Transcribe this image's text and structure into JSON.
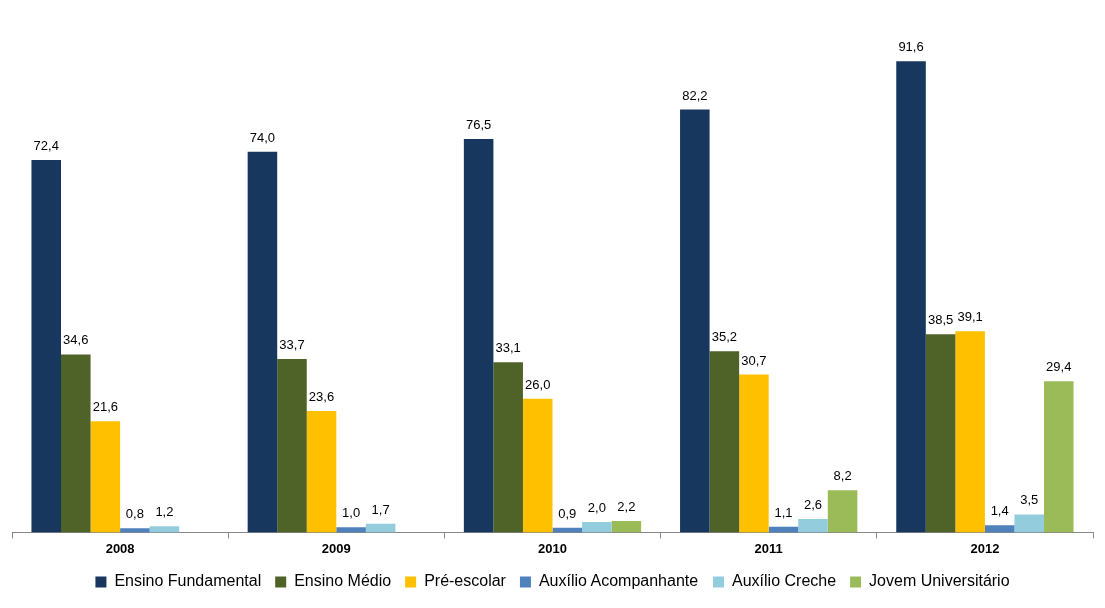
{
  "chart_data": {
    "type": "bar",
    "categories": [
      "2008",
      "2009",
      "2010",
      "2011",
      "2012"
    ],
    "series": [
      {
        "name": "Ensino Fundamental",
        "color": "#17375e",
        "values": [
          72.4,
          74.0,
          76.5,
          82.2,
          91.6
        ],
        "value_labels": [
          "72,4",
          "74,0",
          "76,5",
          "82,2",
          "91,6"
        ]
      },
      {
        "name": "Ensino Médio",
        "color": "#4f6228",
        "values": [
          34.6,
          33.7,
          33.1,
          35.2,
          38.5
        ],
        "value_labels": [
          "34,6",
          "33,7",
          "33,1",
          "35,2",
          "38,5"
        ]
      },
      {
        "name": "Pré-escolar",
        "color": "#ffc000",
        "values": [
          21.6,
          23.6,
          26.0,
          30.7,
          39.1
        ],
        "value_labels": [
          "21,6",
          "23,6",
          "26,0",
          "30,7",
          "39,1"
        ]
      },
      {
        "name": "Auxílio Acompanhante",
        "color": "#4f81bd",
        "values": [
          0.8,
          1.0,
          0.9,
          1.1,
          1.4
        ],
        "value_labels": [
          "0,8",
          "1,0",
          "0,9",
          "1,1",
          "1,4"
        ]
      },
      {
        "name": "Auxílio Creche",
        "color": "#93cddd",
        "values": [
          1.2,
          1.7,
          2.0,
          2.6,
          3.5
        ],
        "value_labels": [
          "1,2",
          "1,7",
          "2,0",
          "2,6",
          "3,5"
        ]
      },
      {
        "name": "Jovem Universitário",
        "color": "#9bbb59",
        "values": [
          null,
          null,
          2.2,
          8.2,
          29.4
        ],
        "value_labels": [
          null,
          null,
          "2,2",
          "8,2",
          "29,4"
        ]
      }
    ],
    "legend": "bottom",
    "grid": false
  }
}
